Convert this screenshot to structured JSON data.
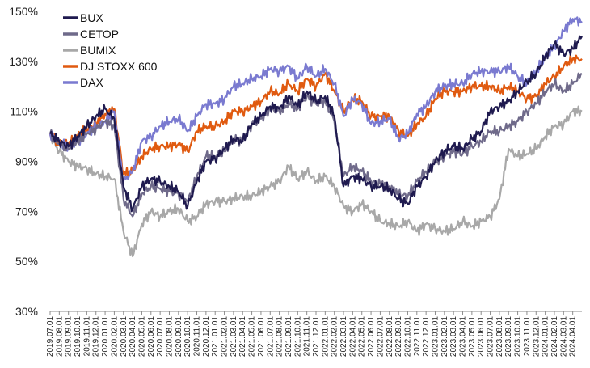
{
  "chart_data": {
    "type": "line",
    "title": "",
    "xlabel": "",
    "ylabel": "",
    "ylim": [
      30,
      150
    ],
    "y_ticks": [
      30,
      50,
      70,
      90,
      110,
      130,
      150
    ],
    "y_tick_labels": [
      "30%",
      "50%",
      "70%",
      "90%",
      "110%",
      "130%",
      "150%"
    ],
    "grid": false,
    "legend_position": "top-left",
    "x_tick_labels": [
      "2019.07.01",
      "2019.08.01",
      "2019.09.01",
      "2019.10.01",
      "2019.11.01",
      "2019.12.01",
      "2020.01.01",
      "2020.02.01",
      "2020.03.01",
      "2020.04.01",
      "2020.05.01",
      "2020.06.01",
      "2020.07.01",
      "2020.08.01",
      "2020.09.01",
      "2020.10.01",
      "2020.11.01",
      "2020.12.01",
      "2021.01.01",
      "2021.02.01",
      "2021.03.01",
      "2021.04.01",
      "2021.05.01",
      "2021.06.01",
      "2021.07.01",
      "2021.08.01",
      "2021.09.01",
      "2021.10.01",
      "2021.11.01",
      "2021.12.01",
      "2022.01.01",
      "2022.02.01",
      "2022.03.01",
      "2022.04.01",
      "2022.05.01",
      "2022.06.01",
      "2022.07.01",
      "2022.08.01",
      "2022.09.01",
      "2022.10.01",
      "2022.11.01",
      "2022.12.01",
      "2023.01.01",
      "2023.02.01",
      "2023.03.01",
      "2023.04.01",
      "2023.05.01",
      "2023.06.01",
      "2023.07.01",
      "2023.08.01",
      "2023.09.01",
      "2023.10.01",
      "2023.11.01",
      "2023.12.01",
      "2024.01.01",
      "2024.02.01",
      "2024.03.01",
      "2024.04.01"
    ],
    "x": [
      "2019.07.01",
      "2019.08.01",
      "2019.09.01",
      "2019.10.01",
      "2019.11.01",
      "2019.12.01",
      "2020.01.01",
      "2020.02.01",
      "2020.03.01",
      "2020.04.01",
      "2020.05.01",
      "2020.06.01",
      "2020.07.01",
      "2020.08.01",
      "2020.09.01",
      "2020.10.01",
      "2020.11.01",
      "2020.12.01",
      "2021.01.01",
      "2021.02.01",
      "2021.03.01",
      "2021.04.01",
      "2021.05.01",
      "2021.06.01",
      "2021.07.01",
      "2021.08.01",
      "2021.09.01",
      "2021.10.01",
      "2021.11.01",
      "2021.12.01",
      "2022.01.01",
      "2022.02.01",
      "2022.03.01",
      "2022.04.01",
      "2022.05.01",
      "2022.06.01",
      "2022.07.01",
      "2022.08.01",
      "2022.09.01",
      "2022.10.01",
      "2022.11.01",
      "2022.12.01",
      "2023.01.01",
      "2023.02.01",
      "2023.03.01",
      "2023.04.01",
      "2023.05.01",
      "2023.06.01",
      "2023.07.01",
      "2023.08.01",
      "2023.09.01",
      "2023.10.01",
      "2023.11.01",
      "2023.12.01",
      "2024.01.01",
      "2024.02.01",
      "2024.03.01",
      "2024.04.01",
      "2024.05.01"
    ],
    "series": [
      {
        "name": "BUX",
        "color": "#1f1a4f",
        "values": [
          101,
          98,
          96,
          100,
          104,
          108,
          111,
          107,
          80,
          71,
          80,
          83,
          82,
          80,
          78,
          72,
          82,
          90,
          91,
          95,
          99,
          98,
          105,
          108,
          112,
          111,
          116,
          112,
          118,
          114,
          116,
          108,
          80,
          84,
          83,
          80,
          80,
          79,
          75,
          73,
          80,
          84,
          90,
          94,
          96,
          95,
          99,
          102,
          110,
          112,
          114,
          118,
          122,
          125,
          132,
          137,
          133,
          135,
          140
        ]
      },
      {
        "name": "CETOP",
        "color": "#6f6a8a",
        "values": [
          101,
          97,
          95,
          98,
          101,
          103,
          106,
          104,
          75,
          68,
          77,
          80,
          79,
          78,
          77,
          74,
          84,
          92,
          92,
          94,
          99,
          98,
          105,
          107,
          111,
          110,
          113,
          111,
          116,
          113,
          114,
          106,
          84,
          88,
          86,
          82,
          81,
          80,
          77,
          76,
          82,
          86,
          90,
          92,
          94,
          93,
          96,
          98,
          102,
          102,
          104,
          106,
          110,
          113,
          118,
          121,
          118,
          121,
          125
        ]
      },
      {
        "name": "BUMIX",
        "color": "#a8a8a8",
        "values": [
          100,
          94,
          90,
          88,
          87,
          85,
          84,
          83,
          62,
          52,
          65,
          70,
          68,
          70,
          71,
          66,
          68,
          73,
          74,
          74,
          75,
          76,
          76,
          78,
          80,
          82,
          88,
          83,
          86,
          82,
          84,
          80,
          72,
          70,
          73,
          70,
          66,
          65,
          64,
          66,
          62,
          65,
          63,
          62,
          63,
          66,
          64,
          66,
          68,
          75,
          95,
          92,
          93,
          95,
          100,
          104,
          105,
          110,
          110
        ]
      },
      {
        "name": "DJ STOXX 600",
        "color": "#e05a10",
        "values": [
          101,
          97,
          97,
          100,
          103,
          105,
          109,
          111,
          85,
          86,
          92,
          95,
          96,
          96,
          97,
          94,
          102,
          104,
          104,
          106,
          110,
          110,
          112,
          114,
          118,
          117,
          121,
          118,
          123,
          120,
          125,
          118,
          110,
          115,
          114,
          108,
          108,
          108,
          102,
          100,
          105,
          108,
          115,
          118,
          118,
          118,
          120,
          120,
          120,
          118,
          120,
          118,
          115,
          116,
          121,
          124,
          128,
          131,
          131
        ]
      },
      {
        "name": "DAX",
        "color": "#7a7ad0",
        "values": [
          101,
          98,
          96,
          98,
          101,
          104,
          106,
          110,
          82,
          86,
          98,
          100,
          104,
          106,
          107,
          102,
          108,
          113,
          113,
          115,
          120,
          121,
          123,
          124,
          127,
          126,
          128,
          123,
          128,
          124,
          127,
          121,
          108,
          115,
          113,
          105,
          106,
          107,
          99,
          101,
          109,
          112,
          118,
          120,
          121,
          121,
          125,
          126,
          126,
          126,
          128,
          124,
          121,
          126,
          132,
          136,
          142,
          147,
          146
        ]
      }
    ]
  }
}
